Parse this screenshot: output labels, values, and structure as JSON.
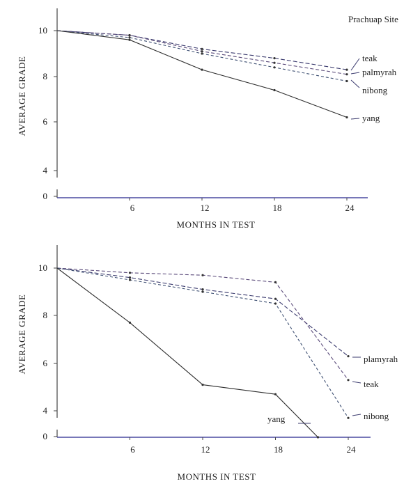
{
  "chart_data": [
    {
      "type": "line",
      "title": "",
      "annotation": "Prachuap Site",
      "xlabel": "MONTHS IN TEST",
      "ylabel": "AVERAGE GRADE",
      "x": [
        0,
        6,
        12,
        18,
        24
      ],
      "xticks": [
        "6",
        "12",
        "18",
        "24"
      ],
      "yticks": [
        "0",
        "4",
        "6",
        "8",
        "10"
      ],
      "ylim": [
        0,
        10
      ],
      "axis_break": "between 0 and 4",
      "grid": false,
      "series": [
        {
          "name": "teak",
          "values": [
            10,
            9.8,
            9.2,
            8.8,
            8.3
          ]
        },
        {
          "name": "palmyrah",
          "values": [
            10,
            9.8,
            9.1,
            8.6,
            8.1
          ]
        },
        {
          "name": "nibong",
          "values": [
            10,
            9.7,
            9.0,
            8.4,
            7.8
          ]
        },
        {
          "name": "yang",
          "values": [
            10,
            9.6,
            8.3,
            7.4,
            6.2
          ]
        }
      ]
    },
    {
      "type": "line",
      "title": "",
      "xlabel": "MONTHS IN TEST",
      "ylabel": "AVERAGE GRADE",
      "x": [
        0,
        6,
        12,
        18,
        24
      ],
      "xticks": [
        "6",
        "12",
        "18",
        "24"
      ],
      "yticks": [
        "0",
        "4",
        "6",
        "8",
        "10"
      ],
      "ylim": [
        0,
        10
      ],
      "axis_break": "between 0 and 4",
      "grid": false,
      "series": [
        {
          "name": "plamyrah",
          "values": [
            10,
            9.6,
            9.1,
            8.7,
            6.3
          ]
        },
        {
          "name": "teak",
          "values": [
            10,
            9.8,
            9.7,
            9.4,
            5.3
          ]
        },
        {
          "name": "nibong",
          "values": [
            10,
            9.5,
            9.0,
            8.5,
            3.7
          ]
        },
        {
          "name": "yang",
          "values": [
            10,
            7.7,
            5.1,
            4.7,
            null
          ]
        }
      ]
    }
  ]
}
